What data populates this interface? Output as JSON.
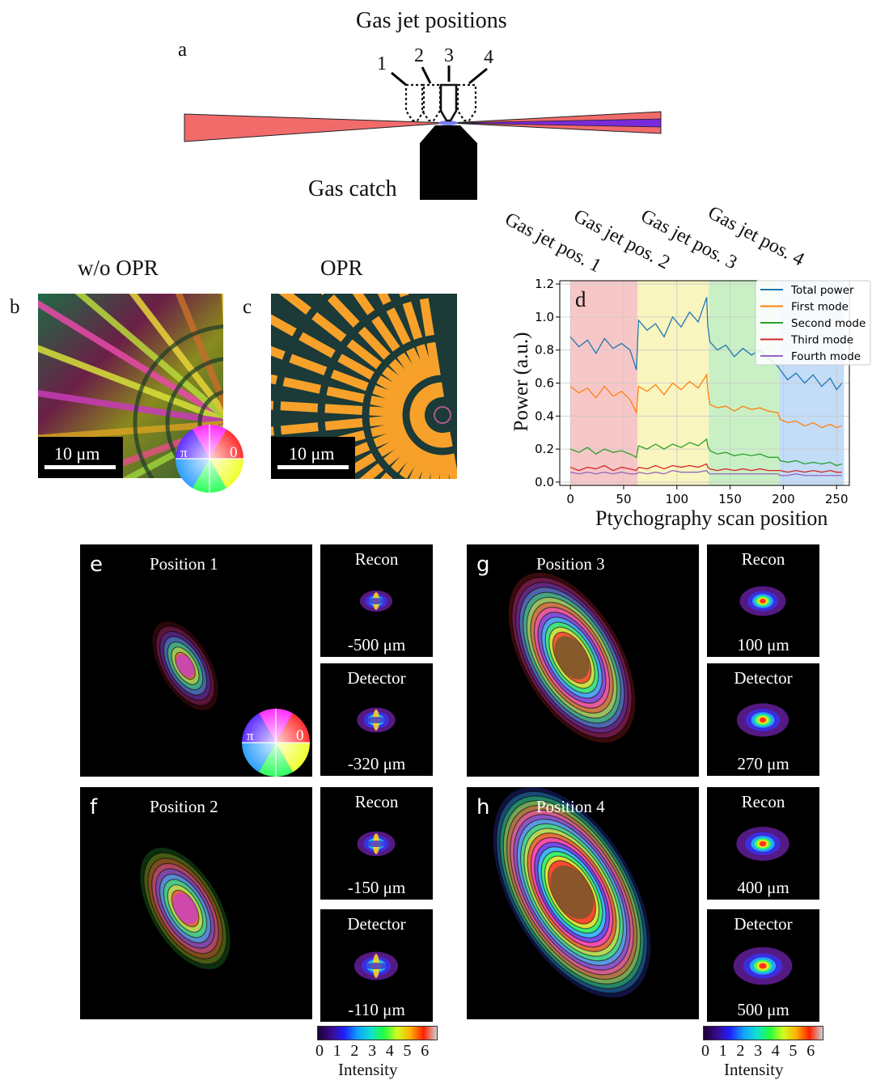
{
  "panel_a": {
    "letter": "a",
    "title": "Gas jet positions",
    "jet_numbers": [
      "1",
      "2",
      "3",
      "4"
    ],
    "gas_catch_label": "Gas catch"
  },
  "panel_b": {
    "letter": "b",
    "title": "w/o OPR",
    "scalebar": "10 μm",
    "wheel_pi": "π",
    "wheel_zero": "0"
  },
  "panel_c": {
    "letter": "c",
    "title": "OPR",
    "scalebar": "10 μm"
  },
  "panel_d": {
    "letter": "d",
    "region_labels": [
      "Gas jet pos. 1",
      "Gas jet pos. 2",
      "Gas jet pos. 3",
      "Gas jet pos. 4"
    ],
    "colors": {
      "total": "#1f77b4",
      "first": "#ff7f0e",
      "second": "#2ca02c",
      "third": "#d62728",
      "fourth": "#9467bd",
      "region1": "#f7c7c7",
      "region2": "#f8f5bf",
      "region3": "#c9f0c5",
      "region4": "#c3dcf7"
    }
  },
  "chart_data": {
    "type": "line",
    "xlabel": "Ptychography scan position",
    "ylabel": "Power (a.u.)",
    "xlim": [
      -10,
      262
    ],
    "ylim": [
      -0.02,
      1.22
    ],
    "xticks": [
      "0",
      "50",
      "100",
      "150",
      "200",
      "250"
    ],
    "yticks": [
      "0.0",
      "0.2",
      "0.4",
      "0.6",
      "0.8",
      "1.0",
      "1.2"
    ],
    "grid": true,
    "legend_position": "top-right",
    "regions": [
      {
        "label": "Gas jet pos. 1",
        "x": [
          0,
          63
        ]
      },
      {
        "label": "Gas jet pos. 2",
        "x": [
          63,
          130
        ]
      },
      {
        "label": "Gas jet pos. 3",
        "x": [
          130,
          196
        ]
      },
      {
        "label": "Gas jet pos. 4",
        "x": [
          196,
          257
        ]
      }
    ],
    "x": [
      0,
      8,
      16,
      24,
      32,
      40,
      48,
      56,
      62,
      64,
      72,
      80,
      88,
      96,
      104,
      112,
      120,
      128,
      129,
      131,
      138,
      146,
      154,
      162,
      170,
      178,
      186,
      195,
      197,
      204,
      212,
      220,
      228,
      236,
      244,
      250,
      255
    ],
    "series": [
      {
        "name": "Total power",
        "values": [
          0.88,
          0.82,
          0.86,
          0.78,
          0.87,
          0.81,
          0.84,
          0.8,
          0.68,
          0.98,
          0.92,
          0.96,
          0.88,
          1.0,
          0.94,
          1.03,
          0.97,
          1.12,
          0.95,
          0.85,
          0.8,
          0.83,
          0.76,
          0.81,
          0.77,
          0.8,
          0.75,
          0.7,
          0.68,
          0.62,
          0.66,
          0.6,
          0.65,
          0.58,
          0.63,
          0.56,
          0.6
        ]
      },
      {
        "name": "First mode",
        "values": [
          0.58,
          0.54,
          0.57,
          0.51,
          0.58,
          0.52,
          0.55,
          0.5,
          0.42,
          0.58,
          0.55,
          0.59,
          0.53,
          0.6,
          0.56,
          0.61,
          0.57,
          0.65,
          0.56,
          0.47,
          0.45,
          0.46,
          0.43,
          0.46,
          0.44,
          0.45,
          0.43,
          0.42,
          0.38,
          0.36,
          0.37,
          0.34,
          0.36,
          0.33,
          0.35,
          0.33,
          0.34
        ]
      },
      {
        "name": "Second mode",
        "values": [
          0.2,
          0.18,
          0.21,
          0.17,
          0.2,
          0.18,
          0.19,
          0.17,
          0.15,
          0.22,
          0.2,
          0.23,
          0.2,
          0.23,
          0.21,
          0.24,
          0.22,
          0.26,
          0.22,
          0.19,
          0.17,
          0.18,
          0.16,
          0.17,
          0.16,
          0.17,
          0.15,
          0.15,
          0.13,
          0.12,
          0.13,
          0.11,
          0.12,
          0.11,
          0.12,
          0.1,
          0.11
        ]
      },
      {
        "name": "Third mode",
        "values": [
          0.09,
          0.07,
          0.09,
          0.08,
          0.1,
          0.07,
          0.09,
          0.08,
          0.07,
          0.09,
          0.08,
          0.1,
          0.08,
          0.1,
          0.09,
          0.1,
          0.09,
          0.11,
          0.09,
          0.08,
          0.07,
          0.08,
          0.07,
          0.08,
          0.07,
          0.08,
          0.07,
          0.07,
          0.07,
          0.06,
          0.07,
          0.06,
          0.07,
          0.06,
          0.07,
          0.06,
          0.06
        ]
      },
      {
        "name": "Fourth mode",
        "values": [
          0.06,
          0.05,
          0.06,
          0.05,
          0.06,
          0.05,
          0.06,
          0.05,
          0.05,
          0.06,
          0.05,
          0.06,
          0.05,
          0.07,
          0.06,
          0.06,
          0.06,
          0.07,
          0.06,
          0.05,
          0.05,
          0.05,
          0.05,
          0.05,
          0.05,
          0.05,
          0.05,
          0.05,
          0.04,
          0.04,
          0.05,
          0.04,
          0.04,
          0.04,
          0.04,
          0.04,
          0.04
        ]
      }
    ]
  },
  "panels_eh": [
    {
      "letter": "e",
      "title": "Position 1",
      "recon_label": "Recon",
      "recon_dist": "-500 μm",
      "detector_label": "Detector",
      "detector_dist": "-320 μm"
    },
    {
      "letter": "f",
      "title": "Position 2",
      "recon_label": "Recon",
      "recon_dist": "-150 μm",
      "detector_label": "Detector",
      "detector_dist": "-110 μm"
    },
    {
      "letter": "g",
      "title": "Position 3",
      "recon_label": "Recon",
      "recon_dist": "100 μm",
      "detector_label": "Detector",
      "detector_dist": "270 μm"
    },
    {
      "letter": "h",
      "title": "Position 4",
      "recon_label": "Recon",
      "recon_dist": "400 μm",
      "detector_label": "Detector",
      "detector_dist": "500 μm"
    }
  ],
  "wheel_e": {
    "pi": "π",
    "zero": "0"
  },
  "colorbar": {
    "ticks": [
      "0",
      "1",
      "2",
      "3",
      "4",
      "5",
      "6"
    ],
    "label": "Intensity"
  }
}
